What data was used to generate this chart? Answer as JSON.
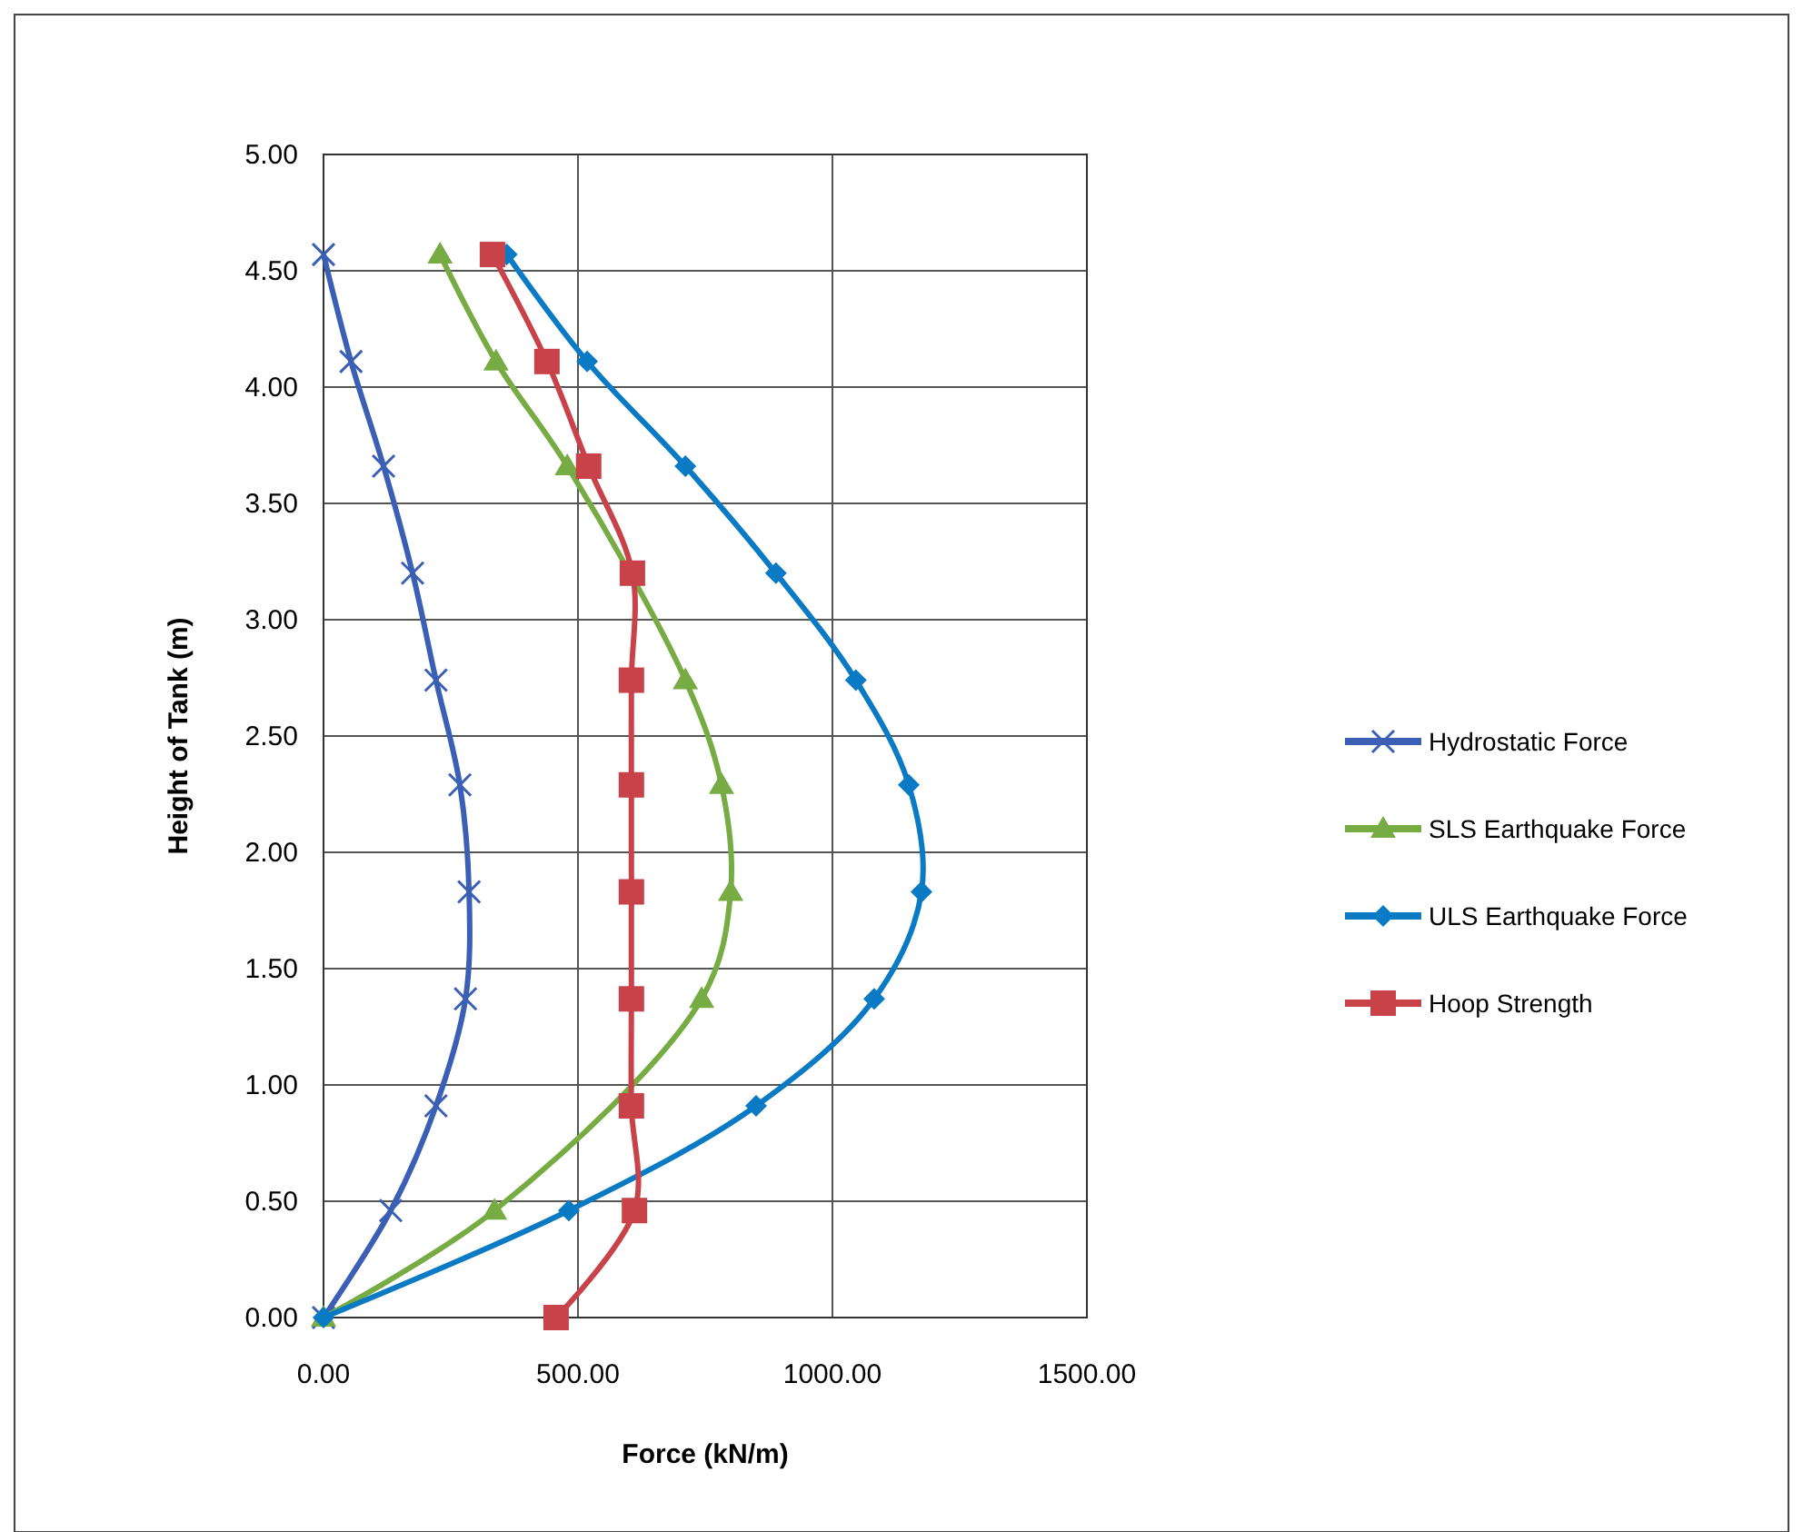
{
  "chart_data": {
    "type": "line",
    "xlabel": "Force (kN/m)",
    "ylabel": "Height of Tank (m)",
    "xlim": [
      0,
      1500
    ],
    "xticks": [
      {
        "value": 0,
        "label": "0.00"
      },
      {
        "value": 500,
        "label": "500.00"
      },
      {
        "value": 1000,
        "label": "1000.00"
      },
      {
        "value": 1500,
        "label": "1500.00"
      }
    ],
    "ylim": [
      0,
      5
    ],
    "yticks": [
      {
        "value": 0,
        "label": "0.00"
      },
      {
        "value": 0.5,
        "label": "0.50"
      },
      {
        "value": 1,
        "label": "1.00"
      },
      {
        "value": 1.5,
        "label": "1.50"
      },
      {
        "value": 2,
        "label": "2.00"
      },
      {
        "value": 2.5,
        "label": "2.50"
      },
      {
        "value": 3,
        "label": "3.00"
      },
      {
        "value": 3.5,
        "label": "3.50"
      },
      {
        "value": 4,
        "label": "4.00"
      },
      {
        "value": 4.5,
        "label": "4.50"
      },
      {
        "value": 5,
        "label": "5.00"
      }
    ],
    "grid": true,
    "legend": "right",
    "series": [
      {
        "name": "Hydrostatic Force",
        "color": "#3a5fb5",
        "marker": "cross",
        "x": [
          0,
          132,
          221,
          279,
          286,
          268,
          221,
          175,
          118,
          54,
          0
        ],
        "values": [
          0,
          0.46,
          0.91,
          1.37,
          1.83,
          2.29,
          2.74,
          3.2,
          3.66,
          4.11,
          4.57
        ]
      },
      {
        "name": "SLS Earthquake Force",
        "color": "#77ab43",
        "marker": "triangle",
        "x": [
          0,
          336,
          600,
          743,
          800,
          782,
          711,
          610,
          479,
          339,
          229
        ],
        "values": [
          0,
          0.46,
          null,
          1.37,
          1.83,
          2.29,
          2.74,
          null,
          3.66,
          4.11,
          4.57
        ]
      },
      {
        "name": "ULS Earthquake Force",
        "color": "#0a7ac4",
        "marker": "diamond",
        "x": [
          0,
          482,
          850,
          1082,
          1175,
          1150,
          1046,
          889,
          711,
          518,
          360
        ],
        "values": [
          0,
          0.46,
          0.91,
          1.37,
          1.83,
          2.29,
          2.74,
          3.2,
          3.66,
          4.11,
          4.57
        ]
      },
      {
        "name": "Hoop Strength",
        "color": "#c8424a",
        "marker": "square",
        "x": [
          457,
          611,
          605,
          605,
          605,
          605,
          605,
          607,
          521,
          439,
          332
        ],
        "values": [
          0,
          0.46,
          0.91,
          1.37,
          1.83,
          2.29,
          2.74,
          3.2,
          3.66,
          4.11,
          4.57
        ]
      }
    ]
  }
}
